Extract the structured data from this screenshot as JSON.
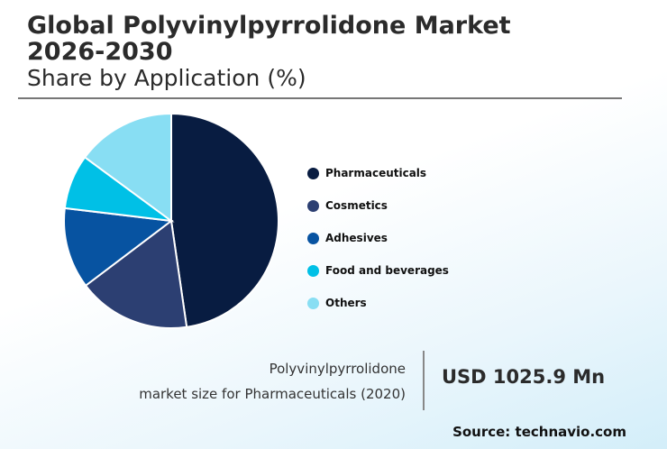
{
  "chart_data": {
    "type": "pie",
    "title": "Global Polyvinylpyrrolidone Market 2026-2030",
    "subtitle": "Share by Application (%)",
    "categories": [
      "Pharmaceuticals",
      "Cosmetics",
      "Adhesives",
      "Food and beverages",
      "Others"
    ],
    "values": [
      47.7,
      17.0,
      12.2,
      8.2,
      14.9
    ],
    "colors": [
      "#081c41",
      "#2c3f72",
      "#0753a1",
      "#00c0e6",
      "#88def3"
    ],
    "legend_position": "right",
    "start_angle": "top, clockwise"
  },
  "callout": {
    "label_line1": "Polyvinylpyrrolidone",
    "label_line2": "market size for Pharmaceuticals (2020)",
    "value": "USD 1025.9 Mn"
  },
  "source": "Source: technavio.com"
}
